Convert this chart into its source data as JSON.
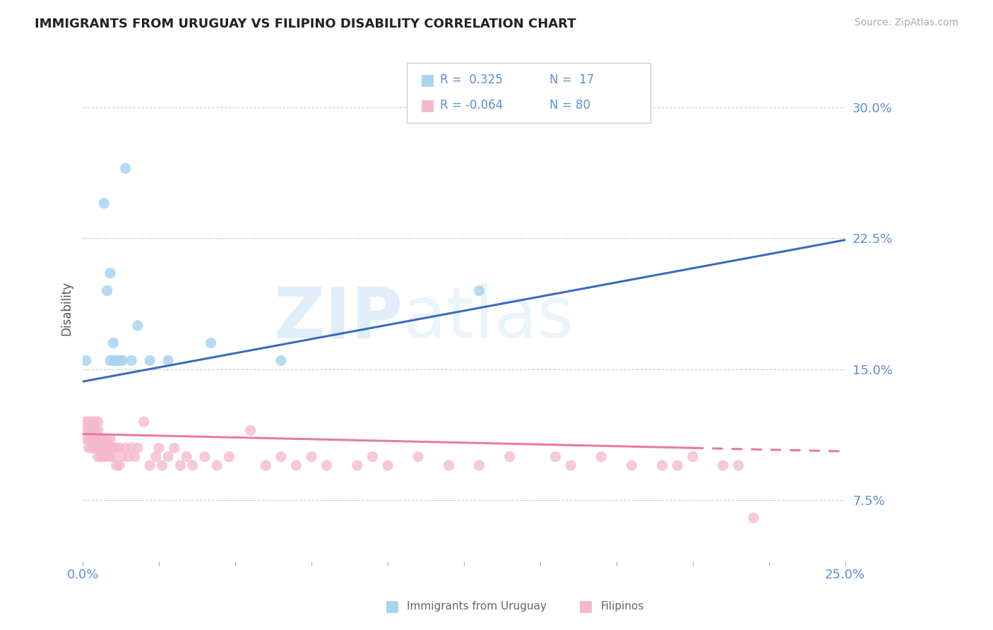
{
  "title": "IMMIGRANTS FROM URUGUAY VS FILIPINO DISABILITY CORRELATION CHART",
  "source": "Source: ZipAtlas.com",
  "ylabel": "Disability",
  "xlim": [
    0.0,
    0.25
  ],
  "ylim": [
    0.04,
    0.33
  ],
  "yticks": [
    0.075,
    0.15,
    0.225,
    0.3
  ],
  "ytick_labels": [
    "7.5%",
    "15.0%",
    "22.5%",
    "30.0%"
  ],
  "xtick_labels_ends": [
    "0.0%",
    "25.0%"
  ],
  "color_uruguay": "#a8d4f0",
  "color_filipino": "#f4b8cc",
  "color_line_uruguay": "#3a6bbf",
  "color_line_filipino": "#e87aa0",
  "color_axis_labels": "#5b8fd4",
  "watermark_zip": "ZIP",
  "watermark_atlas": "atlas",
  "uruguay_x": [
    0.001,
    0.007,
    0.008,
    0.009,
    0.009,
    0.01,
    0.01,
    0.011,
    0.012,
    0.013,
    0.014,
    0.016,
    0.018,
    0.022,
    0.028,
    0.042,
    0.065,
    0.13
  ],
  "uruguay_y": [
    0.155,
    0.245,
    0.195,
    0.205,
    0.155,
    0.155,
    0.165,
    0.155,
    0.155,
    0.155,
    0.265,
    0.155,
    0.175,
    0.155,
    0.155,
    0.165,
    0.155,
    0.195
  ],
  "filipino_x": [
    0.001,
    0.001,
    0.001,
    0.002,
    0.002,
    0.002,
    0.002,
    0.003,
    0.003,
    0.003,
    0.003,
    0.004,
    0.004,
    0.004,
    0.004,
    0.005,
    0.005,
    0.005,
    0.005,
    0.005,
    0.006,
    0.006,
    0.006,
    0.007,
    0.007,
    0.007,
    0.008,
    0.008,
    0.008,
    0.009,
    0.009,
    0.009,
    0.01,
    0.01,
    0.011,
    0.011,
    0.012,
    0.012,
    0.013,
    0.014,
    0.015,
    0.016,
    0.017,
    0.018,
    0.02,
    0.022,
    0.024,
    0.025,
    0.026,
    0.028,
    0.03,
    0.032,
    0.034,
    0.036,
    0.04,
    0.044,
    0.048,
    0.055,
    0.06,
    0.065,
    0.07,
    0.075,
    0.08,
    0.09,
    0.095,
    0.1,
    0.11,
    0.12,
    0.13,
    0.14,
    0.155,
    0.16,
    0.17,
    0.18,
    0.19,
    0.195,
    0.2,
    0.21,
    0.215,
    0.22
  ],
  "filipino_y": [
    0.11,
    0.115,
    0.12,
    0.105,
    0.11,
    0.115,
    0.12,
    0.105,
    0.11,
    0.115,
    0.12,
    0.105,
    0.11,
    0.115,
    0.12,
    0.1,
    0.105,
    0.11,
    0.115,
    0.12,
    0.1,
    0.105,
    0.11,
    0.1,
    0.105,
    0.11,
    0.1,
    0.105,
    0.11,
    0.1,
    0.105,
    0.11,
    0.1,
    0.105,
    0.095,
    0.105,
    0.095,
    0.105,
    0.1,
    0.105,
    0.1,
    0.105,
    0.1,
    0.105,
    0.12,
    0.095,
    0.1,
    0.105,
    0.095,
    0.1,
    0.105,
    0.095,
    0.1,
    0.095,
    0.1,
    0.095,
    0.1,
    0.115,
    0.095,
    0.1,
    0.095,
    0.1,
    0.095,
    0.095,
    0.1,
    0.095,
    0.1,
    0.095,
    0.095,
    0.1,
    0.1,
    0.095,
    0.1,
    0.095,
    0.095,
    0.095,
    0.1,
    0.095,
    0.095,
    0.065
  ],
  "line_uru_x0": 0.0,
  "line_uru_y0": 0.143,
  "line_uru_x1": 0.25,
  "line_uru_y1": 0.224,
  "line_fil_solid_x0": 0.0,
  "line_fil_solid_y0": 0.113,
  "line_fil_solid_x1": 0.2,
  "line_fil_solid_y1": 0.105,
  "line_fil_dash_x0": 0.2,
  "line_fil_dash_y0": 0.105,
  "line_fil_dash_x1": 0.25,
  "line_fil_dash_y1": 0.103
}
